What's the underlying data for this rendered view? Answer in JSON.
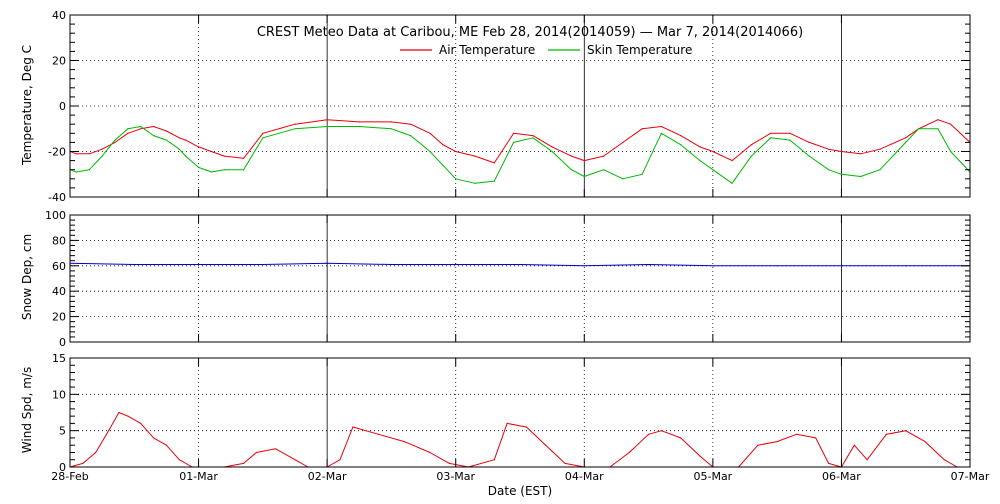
{
  "chart_data": [
    {
      "type": "line",
      "title": "CREST Meteo Data at Caribou, ME   Feb 28, 2014(2014059) — Mar  7, 2014(2014066)",
      "ylabel": "Temperature, Deg C",
      "ylim": [
        -40,
        40
      ],
      "yticks": [
        "40",
        "20",
        "0",
        "-20",
        "-40"
      ],
      "legend_position": "top-center",
      "grid": true,
      "series": [
        {
          "name": "Air Temperature",
          "color": "#e8000b",
          "x": [
            0,
            0.05,
            0.15,
            0.25,
            0.35,
            0.45,
            0.55,
            0.65,
            0.75,
            0.85,
            0.9,
            1.0,
            1.1,
            1.2,
            1.35,
            1.5,
            1.75,
            2.0,
            2.25,
            2.5,
            2.65,
            2.8,
            2.9,
            3.0,
            3.15,
            3.3,
            3.45,
            3.6,
            3.75,
            3.9,
            4.0,
            4.15,
            4.3,
            4.45,
            4.6,
            4.75,
            4.9,
            5.0,
            5.15,
            5.3,
            5.45,
            5.6,
            5.75,
            5.9,
            6.0,
            6.15,
            6.3,
            6.5,
            6.6,
            6.75,
            6.85,
            7.0
          ],
          "y": [
            -20,
            -21,
            -21,
            -19,
            -16,
            -12,
            -10,
            -9,
            -11,
            -14,
            -15,
            -18,
            -20,
            -22,
            -23,
            -12,
            -8,
            -6,
            -7,
            -7,
            -8,
            -12,
            -17,
            -20,
            -22,
            -25,
            -12,
            -13,
            -18,
            -22,
            -24,
            -22,
            -16,
            -10,
            -9,
            -13,
            -18,
            -20,
            -24,
            -17,
            -12,
            -12,
            -16,
            -19,
            -20,
            -21,
            -19,
            -14,
            -10,
            -6,
            -8,
            -16
          ]
        },
        {
          "name": "Skin Temperature",
          "color": "#00b800",
          "x": [
            0,
            0.05,
            0.15,
            0.25,
            0.35,
            0.45,
            0.55,
            0.65,
            0.75,
            0.85,
            0.9,
            1.0,
            1.1,
            1.2,
            1.35,
            1.5,
            1.75,
            2.0,
            2.25,
            2.5,
            2.65,
            2.8,
            2.9,
            3.0,
            3.15,
            3.3,
            3.45,
            3.6,
            3.75,
            3.9,
            4.0,
            4.15,
            4.3,
            4.45,
            4.6,
            4.75,
            4.9,
            5.0,
            5.15,
            5.3,
            5.45,
            5.6,
            5.75,
            5.9,
            6.0,
            6.15,
            6.3,
            6.5,
            6.6,
            6.75,
            6.85,
            7.0
          ],
          "y": [
            -28,
            -29,
            -28,
            -22,
            -15,
            -10,
            -9,
            -13,
            -15,
            -19,
            -22,
            -27,
            -29,
            -28,
            -28,
            -14,
            -10,
            -9,
            -9,
            -10,
            -13,
            -20,
            -26,
            -32,
            -34,
            -33,
            -16,
            -14,
            -20,
            -28,
            -31,
            -28,
            -32,
            -30,
            -12,
            -17,
            -24,
            -28,
            -34,
            -22,
            -14,
            -15,
            -22,
            -28,
            -30,
            -31,
            -28,
            -16,
            -10,
            -10,
            -20,
            -29
          ]
        }
      ]
    },
    {
      "type": "line",
      "ylabel": "Snow Dep, cm",
      "ylim": [
        0,
        100
      ],
      "yticks": [
        "100",
        "80",
        "60",
        "40",
        "20",
        "0"
      ],
      "grid": true,
      "series": [
        {
          "color": "#0000cc",
          "x": [
            0,
            0.5,
            1.0,
            1.5,
            2.0,
            2.5,
            3.0,
            3.5,
            4.0,
            4.5,
            5.0,
            5.5,
            6.0,
            6.5,
            7.0
          ],
          "y": [
            62,
            61,
            61,
            61,
            62,
            61,
            61,
            61,
            60,
            61,
            60,
            60,
            60,
            60,
            60
          ]
        }
      ]
    },
    {
      "type": "line",
      "ylabel": "Wind Spd, m/s",
      "ylim": [
        0,
        15
      ],
      "yticks": [
        "15",
        "10",
        "5",
        "0"
      ],
      "xlabel": "Date (EST)",
      "xticks": [
        "28-Feb",
        "01-Mar",
        "02-Mar",
        "03-Mar",
        "04-Mar",
        "05-Mar",
        "06-Mar",
        "07-Mar"
      ],
      "grid": true,
      "series": [
        {
          "color": "#e8000b",
          "x": [
            0,
            0.1,
            0.2,
            0.3,
            0.38,
            0.45,
            0.55,
            0.65,
            0.75,
            0.85,
            0.95,
            1.0,
            1.2,
            1.35,
            1.45,
            1.6,
            1.75,
            1.85,
            2.0,
            2.1,
            2.2,
            2.4,
            2.6,
            2.8,
            2.95,
            3.1,
            3.3,
            3.4,
            3.55,
            3.7,
            3.85,
            4.0,
            4.2,
            4.35,
            4.5,
            4.6,
            4.75,
            4.9,
            5.0,
            5.2,
            5.35,
            5.5,
            5.65,
            5.8,
            5.9,
            6.0,
            6.1,
            6.2,
            6.35,
            6.5,
            6.65,
            6.8,
            6.9,
            7.0
          ],
          "y": [
            0,
            0.5,
            2,
            5,
            7.5,
            7,
            6,
            4,
            3,
            1,
            0,
            0,
            0,
            0.5,
            2,
            2.5,
            1,
            0,
            0,
            1,
            5.5,
            4.5,
            3.5,
            2,
            0.5,
            0,
            1,
            6,
            5.5,
            3,
            0.5,
            0,
            0,
            2,
            4.5,
            5,
            4,
            1.5,
            0,
            0,
            3,
            3.5,
            4.5,
            4,
            0.5,
            0,
            3,
            1,
            4.5,
            5,
            3.5,
            1,
            0,
            0
          ]
        }
      ]
    }
  ]
}
